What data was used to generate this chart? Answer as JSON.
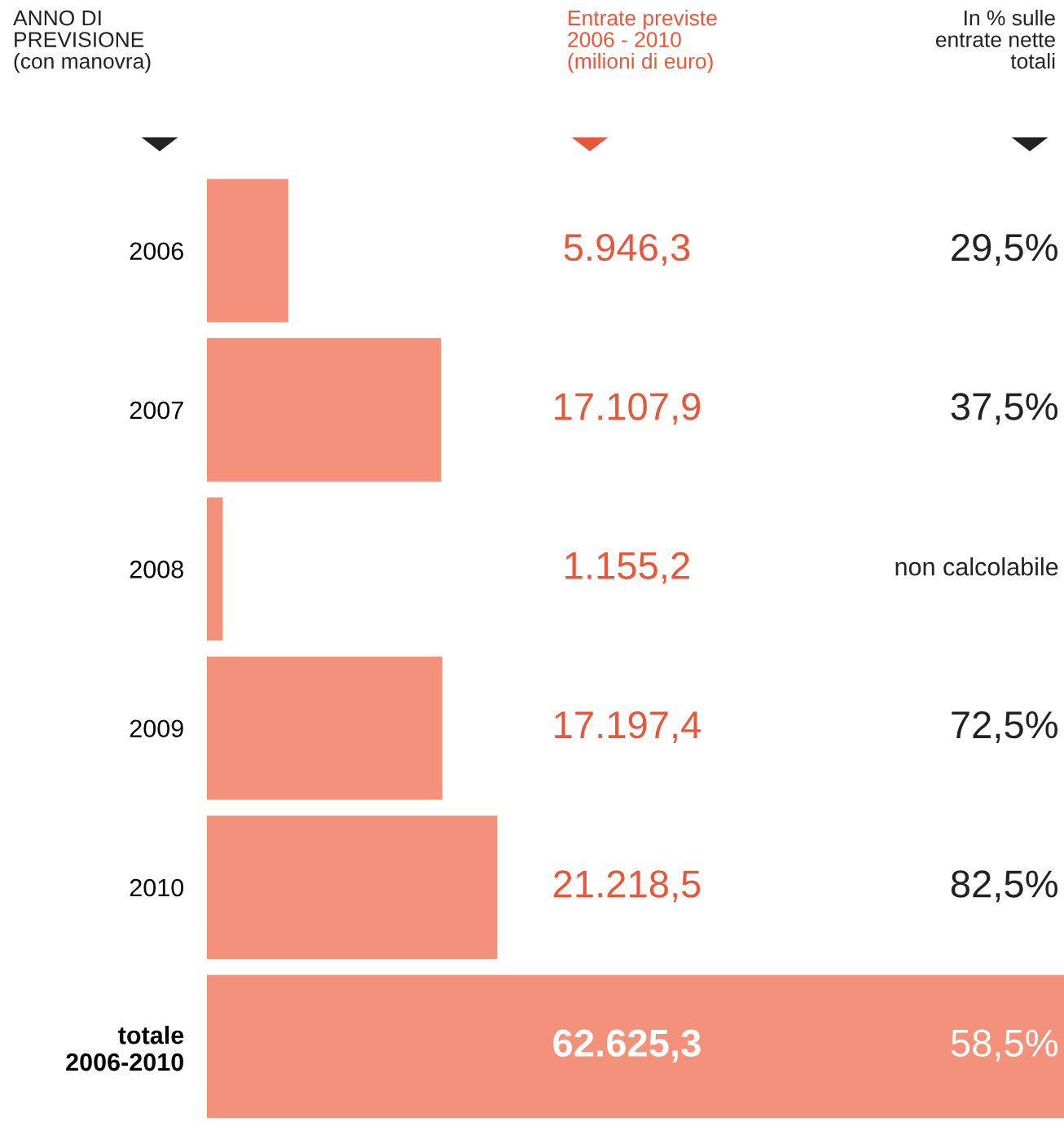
{
  "chart_data": {
    "type": "bar",
    "orientation": "horizontal",
    "categories": [
      "2006",
      "2007",
      "2008",
      "2009",
      "2010",
      "totale\n2006-2010"
    ],
    "values": [
      5946.3,
      17107.9,
      1155.2,
      17197.4,
      21218.5,
      62625.3
    ],
    "value_labels": [
      "5.946,3",
      "17.107,9",
      "1.155,2",
      "17.197,4",
      "21.218,5",
      "62.625,3"
    ],
    "color": "#f4917a",
    "xlim": [
      0,
      62625.3
    ],
    "tick_labels": "y",
    "grid": false,
    "annotations": [
      "ANNO DI\nPREVISIONE\n(con manovra)",
      "Entrate previste\n2006 - 2010\n(milioni di euro)",
      "In % sulle\nentrate nette\ntotali",
      "29,5%",
      "37,5%",
      "non calcolabile",
      "72,5%",
      "82,5%",
      "58,5%"
    ]
  }
}
